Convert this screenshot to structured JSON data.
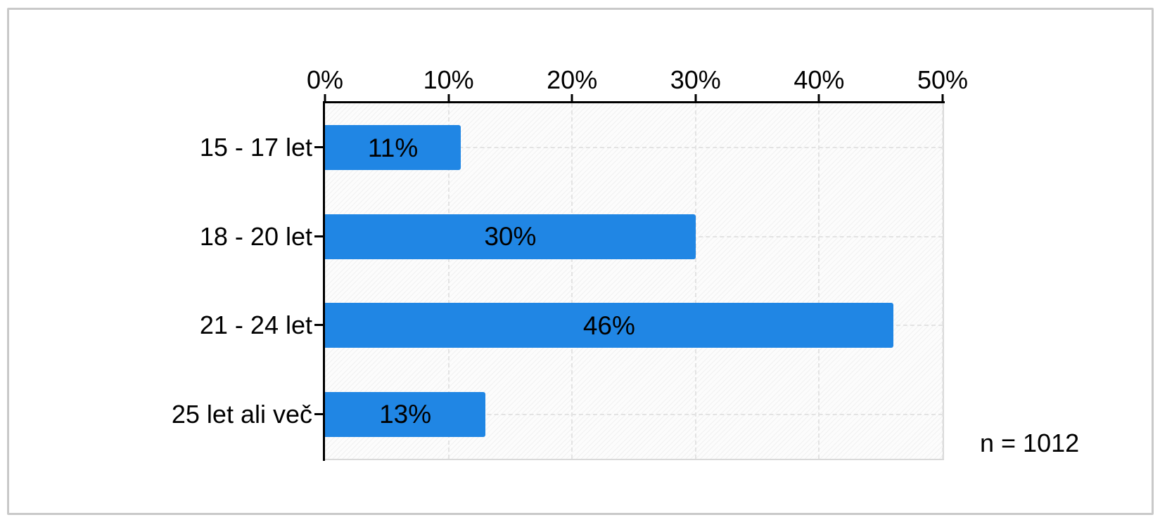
{
  "chart_data": {
    "type": "bar",
    "orientation": "horizontal",
    "title": "",
    "categories": [
      "15 - 17 let",
      "18 - 20 let",
      "21 - 24 let",
      "25 let ali več"
    ],
    "values": [
      11,
      30,
      46,
      13
    ],
    "value_labels": [
      "11%",
      "30%",
      "46%",
      "13%"
    ],
    "x_axis": {
      "position": "top",
      "tick_labels": [
        "0%",
        "10%",
        "20%",
        "30%",
        "40%",
        "50%"
      ],
      "tick_values": [
        0,
        10,
        20,
        30,
        40,
        50
      ],
      "range": [
        0,
        50
      ]
    },
    "grid": true,
    "legend": "none",
    "annotation": "n = 1012",
    "colors": {
      "bar": "#2086E4",
      "axis": "#000000",
      "gridline": "#E3E3E3",
      "plot_background": "#FCFCFC",
      "frame_border": "#C9C9C9",
      "label_text": "#000000"
    }
  }
}
